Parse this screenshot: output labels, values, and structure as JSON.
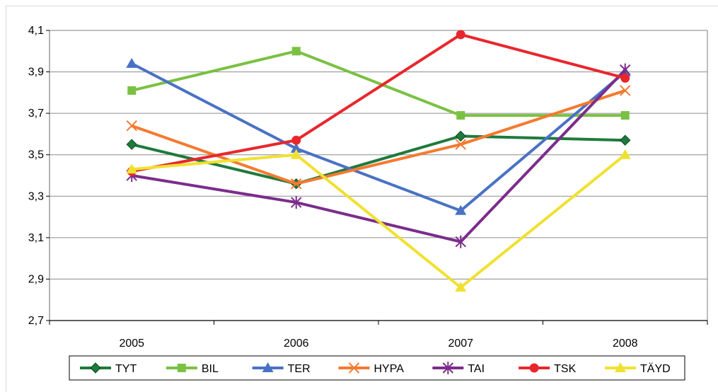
{
  "chart_data": {
    "type": "line",
    "categories": [
      "2005",
      "2006",
      "2007",
      "2008"
    ],
    "ylim": [
      2.7,
      4.1
    ],
    "yticks": [
      "4,1",
      "3,9",
      "3,7",
      "3,5",
      "3,3",
      "3,1",
      "2,9",
      "2,7"
    ],
    "ytick_values": [
      4.1,
      3.9,
      3.7,
      3.5,
      3.3,
      3.1,
      2.9,
      2.7
    ],
    "grid": true,
    "legend_position": "bottom",
    "series": [
      {
        "name": "TYT",
        "color": "#1f7a3c",
        "marker": "diamond",
        "values": [
          3.55,
          3.36,
          3.59,
          3.57
        ]
      },
      {
        "name": "BIL",
        "color": "#7ac143",
        "marker": "square",
        "values": [
          3.81,
          4.0,
          3.69,
          3.69
        ]
      },
      {
        "name": "TER",
        "color": "#4a72c4",
        "marker": "triangle",
        "values": [
          3.94,
          3.53,
          3.23,
          3.9
        ]
      },
      {
        "name": "HYPA",
        "color": "#f47a30",
        "marker": "x",
        "values": [
          3.64,
          3.36,
          3.55,
          3.81
        ]
      },
      {
        "name": "TAI",
        "color": "#7b2d8b",
        "marker": "star",
        "values": [
          3.4,
          3.27,
          3.08,
          3.91
        ]
      },
      {
        "name": "TSK",
        "color": "#e8272d",
        "marker": "circle",
        "values": [
          3.42,
          3.57,
          4.08,
          3.87
        ]
      },
      {
        "name": "TÄYD",
        "color": "#f0e130",
        "marker": "triangle",
        "values": [
          3.43,
          3.5,
          2.86,
          3.5
        ]
      }
    ]
  }
}
